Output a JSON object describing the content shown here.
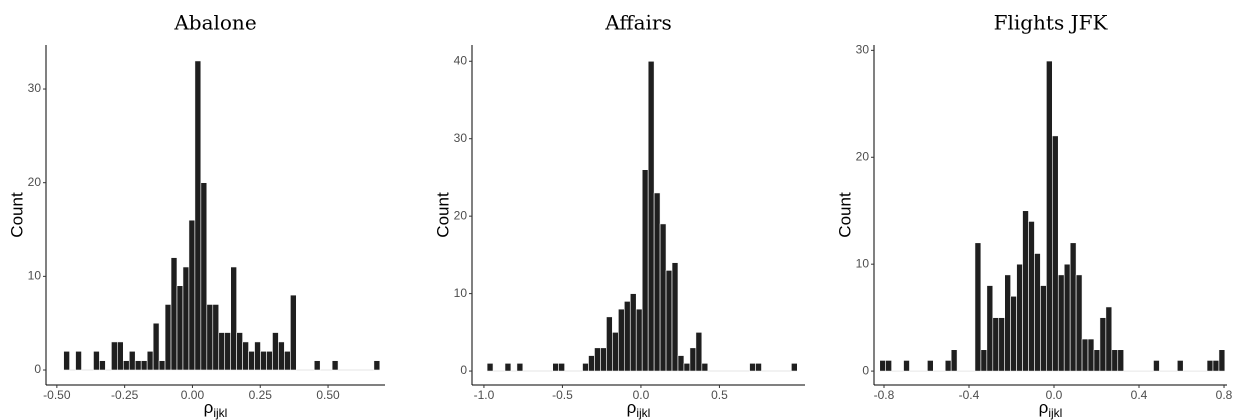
{
  "chart_data": [
    {
      "type": "histogram",
      "title": "Abalone",
      "x_label": "ρ",
      "x_label_subscript": "ijkl",
      "y_label": "Count",
      "color": "#1f1f1f",
      "bins": [
        -0.475,
        -0.453,
        -0.431,
        -0.409,
        -0.387,
        -0.365,
        -0.343,
        -0.321,
        -0.299,
        -0.277,
        -0.255,
        -0.233,
        -0.211,
        -0.189,
        -0.167,
        -0.145,
        -0.123,
        -0.101,
        -0.079,
        -0.057,
        -0.035,
        -0.013,
        0.009,
        0.031,
        0.053,
        0.075,
        0.097,
        0.119,
        0.141,
        0.163,
        0.185,
        0.207,
        0.229,
        0.251,
        0.273,
        0.295,
        0.317,
        0.339,
        0.361,
        0.383,
        0.405,
        0.427,
        0.449,
        0.471,
        0.493,
        0.515,
        0.537,
        0.559,
        0.581,
        0.603,
        0.625,
        0.647,
        0.669,
        0.691
      ],
      "values": [
        2,
        0,
        2,
        0,
        0,
        2,
        1,
        0,
        3,
        3,
        1,
        2,
        1,
        1,
        2,
        5,
        1,
        7,
        12,
        9,
        11,
        16,
        33,
        20,
        7,
        7,
        4,
        4,
        11,
        4,
        3,
        2,
        3,
        2,
        2,
        4,
        3,
        2,
        8,
        0,
        0,
        0,
        1,
        0,
        0,
        1,
        0,
        0,
        0,
        0,
        0,
        0,
        1
      ],
      "xlim": [
        -0.54,
        0.71
      ],
      "ylim": [
        -1.6,
        34.7
      ],
      "xticks": [
        {
          "value": -0.5,
          "label": "-0.50"
        },
        -0.25,
        {
          "value": 0,
          "label": "0.00"
        },
        0.25,
        {
          "value": 0.5,
          "label": "0.50"
        }
      ],
      "yticks": [
        0,
        10,
        20,
        30
      ]
    },
    {
      "type": "histogram",
      "title": "Affairs",
      "x_label": "ρ",
      "x_label_subscript": "ijkl",
      "y_label": "Count",
      "color": "#1f1f1f",
      "bins": [
        -0.98,
        -0.942,
        -0.904,
        -0.866,
        -0.828,
        -0.79,
        -0.752,
        -0.714,
        -0.676,
        -0.638,
        -0.6,
        -0.562,
        -0.524,
        -0.486,
        -0.448,
        -0.41,
        -0.372,
        -0.334,
        -0.296,
        -0.258,
        -0.22,
        -0.182,
        -0.144,
        -0.106,
        -0.068,
        -0.03,
        0.008,
        0.046,
        0.084,
        0.122,
        0.16,
        0.198,
        0.236,
        0.274,
        0.312,
        0.35,
        0.388,
        0.426,
        0.464,
        0.502,
        0.54,
        0.578,
        0.616,
        0.654,
        0.692,
        0.73,
        0.768,
        0.806,
        0.844,
        0.882,
        0.92,
        0.958,
        0.996
      ],
      "values": [
        1,
        0,
        0,
        1,
        0,
        1,
        0,
        0,
        0,
        0,
        0,
        1,
        1,
        0,
        0,
        0,
        1,
        2,
        3,
        3,
        7,
        5,
        8,
        9,
        10,
        8,
        26,
        40,
        23,
        19,
        13,
        14,
        2,
        1,
        3,
        5,
        1,
        0,
        0,
        0,
        0,
        0,
        0,
        0,
        1,
        1,
        0,
        0,
        0,
        0,
        0,
        1
      ],
      "xlim": [
        -1.076,
        1.045
      ],
      "ylim": [
        -1.8,
        42.1
      ],
      "xticks": [
        {
          "value": -1,
          "label": "-1.0"
        },
        -0.5,
        {
          "value": 0,
          "label": "0.0"
        },
        0.5
      ],
      "yticks": [
        0,
        10,
        20,
        30,
        40
      ]
    },
    {
      "type": "histogram",
      "title": "Flights JFK",
      "x_label": "ρ",
      "x_label_subscript": "ijkl",
      "y_label": "Count",
      "color": "#1f1f1f",
      "bins": [
        -0.82,
        -0.792,
        -0.764,
        -0.736,
        -0.708,
        -0.68,
        -0.652,
        -0.624,
        -0.596,
        -0.568,
        -0.54,
        -0.512,
        -0.484,
        -0.456,
        -0.428,
        -0.4,
        -0.372,
        -0.344,
        -0.316,
        -0.288,
        -0.26,
        -0.232,
        -0.204,
        -0.176,
        -0.148,
        -0.12,
        -0.092,
        -0.064,
        -0.036,
        -0.008,
        0.02,
        0.048,
        0.076,
        0.104,
        0.132,
        0.16,
        0.188,
        0.216,
        0.244,
        0.272,
        0.3,
        0.328,
        0.356,
        0.384,
        0.412,
        0.44,
        0.468,
        0.496,
        0.524,
        0.552,
        0.58,
        0.608,
        0.636,
        0.664,
        0.692,
        0.72,
        0.748,
        0.776,
        0.804
      ],
      "values": [
        1,
        1,
        0,
        0,
        1,
        0,
        0,
        0,
        1,
        0,
        0,
        1,
        2,
        0,
        0,
        0,
        12,
        2,
        8,
        5,
        5,
        9,
        7,
        10,
        15,
        14,
        11,
        8,
        29,
        22,
        9,
        10,
        12,
        9,
        3,
        3,
        2,
        5,
        6,
        2,
        2,
        0,
        0,
        0,
        0,
        0,
        1,
        0,
        0,
        0,
        1,
        0,
        0,
        0,
        0,
        1,
        1,
        2
      ],
      "xlim": [
        -0.847,
        0.814
      ],
      "ylim": [
        -1.3,
        30.5
      ],
      "xticks": [
        -0.8,
        -0.4,
        {
          "value": 0,
          "label": "0.0"
        },
        0.4,
        0.8
      ],
      "yticks": [
        0,
        10,
        20,
        30
      ]
    }
  ]
}
